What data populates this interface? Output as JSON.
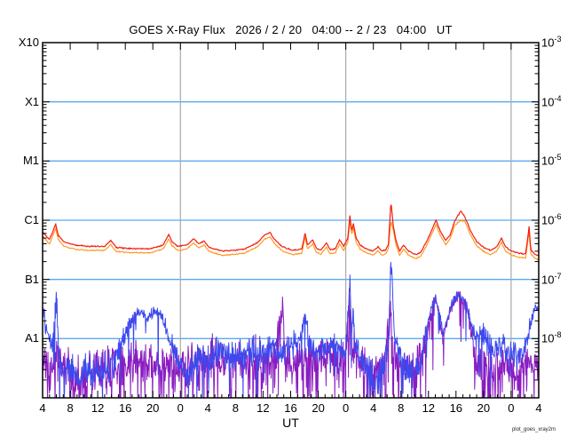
{
  "chart_data": {
    "type": "line",
    "title": "GOES X-Ray Flux   2026 / 2 / 20   04:00 -- 2 / 23   04:00   UT",
    "xlabel": "UT",
    "watermark": "plot_goes_xray2m",
    "x_range_hours": [
      0,
      72
    ],
    "ylim_log": [
      -9,
      -3
    ],
    "x_axis": {
      "major_tick_hours": 4,
      "minor_tick_hours": 1,
      "tick_labels": [
        "4",
        "8",
        "12",
        "16",
        "20",
        "0",
        "4",
        "8",
        "12",
        "16",
        "20",
        "0",
        "4",
        "8",
        "12",
        "16",
        "20",
        "0",
        "4"
      ]
    },
    "y_axis_left_labels": [
      {
        "label": "X10",
        "log": -3
      },
      {
        "label": "X1",
        "log": -4
      },
      {
        "label": "M1",
        "log": -5
      },
      {
        "label": "C1",
        "log": -6
      },
      {
        "label": "B1",
        "log": -7
      },
      {
        "label": "A1",
        "log": -8
      }
    ],
    "y_axis_right_labels": [
      {
        "base": "10",
        "exp": "-3",
        "log": -3
      },
      {
        "base": "10",
        "exp": "-4",
        "log": -4
      },
      {
        "base": "10",
        "exp": "-5",
        "log": -5
      },
      {
        "base": "10",
        "exp": "-6",
        "log": -6
      },
      {
        "base": "10",
        "exp": "-7",
        "log": -7
      },
      {
        "base": "10",
        "exp": "-8",
        "log": -8
      }
    ],
    "grid": {
      "h_lines_log": [
        -4,
        -5,
        -6,
        -7,
        -8
      ],
      "v_lines_hours": [
        20,
        44,
        68
      ],
      "h_line_color": "#58aaf2",
      "v_line_color": "#a9a9a9"
    },
    "series": [
      {
        "name": "xray-short-secondary",
        "color": "#8a1cc0",
        "width": 1,
        "step": 0.055,
        "seed": 911,
        "dip_prob": 0.12,
        "dip_depth": 1.2,
        "amp_keys": [
          [
            0,
            0.45
          ],
          [
            5,
            0.5
          ],
          [
            11,
            0.45
          ],
          [
            14,
            0.38
          ],
          [
            18,
            0.42
          ],
          [
            25,
            0.45
          ],
          [
            35,
            0.42
          ],
          [
            44,
            0.4
          ],
          [
            46,
            0.45
          ],
          [
            50,
            0.45
          ],
          [
            54,
            0.45
          ],
          [
            56.3,
            0.18
          ],
          [
            57.2,
            0.12
          ],
          [
            61,
            0.12
          ],
          [
            62.5,
            0.3
          ],
          [
            64,
            0.5
          ],
          [
            68,
            0.5
          ],
          [
            71,
            0.45
          ],
          [
            72,
            0.4
          ]
        ],
        "keypoints": [
          [
            0,
            -8.4
          ],
          [
            0.9,
            -8.6
          ],
          [
            1.55,
            -8.3
          ],
          [
            2.6,
            -8.5
          ],
          [
            3.5,
            -8.4
          ],
          [
            4.4,
            -8.8
          ],
          [
            5.4,
            -8.6
          ],
          [
            6.4,
            -8.7
          ],
          [
            7.5,
            -8.5
          ],
          [
            8.6,
            -8.55
          ],
          [
            9.8,
            -8.45
          ],
          [
            10.8,
            -8.5
          ],
          [
            11.8,
            -8.45
          ],
          [
            13.1,
            -8.4
          ],
          [
            14.2,
            -8.35
          ],
          [
            15.2,
            -8.45
          ],
          [
            16.2,
            -8.4
          ],
          [
            17.3,
            -8.5
          ],
          [
            18.3,
            -8.45
          ],
          [
            19.6,
            -8.5
          ],
          [
            21.1,
            -8.45
          ],
          [
            22.7,
            -8.35
          ],
          [
            24.5,
            -8.3
          ],
          [
            26,
            -8.4
          ],
          [
            27.6,
            -8.3
          ],
          [
            29.2,
            -8.35
          ],
          [
            30.9,
            -8.3
          ],
          [
            32.5,
            -8.4
          ],
          [
            33.7,
            -8.35
          ],
          [
            34.8,
            -7.5
          ],
          [
            35.3,
            -8.3
          ],
          [
            36.8,
            -8.35
          ],
          [
            38.4,
            -8.3
          ],
          [
            39.9,
            -8.35
          ],
          [
            41.5,
            -8.3
          ],
          [
            43,
            -8.4
          ],
          [
            44.05,
            -8.3
          ],
          [
            44.6,
            -7.3
          ],
          [
            44.95,
            -8.2
          ],
          [
            46.1,
            -8.4
          ],
          [
            47.4,
            -8.45
          ],
          [
            48.7,
            -8.5
          ],
          [
            49.7,
            -8.4
          ],
          [
            50.5,
            -7.6
          ],
          [
            50.9,
            -8.3
          ],
          [
            52,
            -8.45
          ],
          [
            53.3,
            -8.5
          ],
          [
            54.6,
            -8.45
          ],
          [
            55.6,
            -8.0
          ],
          [
            56.4,
            -7.55
          ],
          [
            56.9,
            -7.32
          ],
          [
            57.4,
            -7.5
          ],
          [
            58.1,
            -8.0
          ],
          [
            58.6,
            -7.8
          ],
          [
            59.2,
            -7.5
          ],
          [
            60,
            -7.32
          ],
          [
            60.5,
            -7.28
          ],
          [
            61.3,
            -7.4
          ],
          [
            62.1,
            -7.8
          ],
          [
            62.9,
            -8.3
          ],
          [
            64.1,
            -8.5
          ],
          [
            65.4,
            -8.55
          ],
          [
            66.7,
            -8.5
          ],
          [
            68,
            -8.55
          ],
          [
            69.3,
            -8.5
          ],
          [
            70.6,
            -8.45
          ],
          [
            71.3,
            -8.4
          ],
          [
            72,
            -8.35
          ]
        ]
      },
      {
        "name": "xray-short-primary",
        "color": "#3d49ed",
        "width": 1,
        "step": 0.055,
        "seed": 4242,
        "dip_prob": 0.05,
        "dip_depth": 1.1,
        "amp_keys": [
          [
            0,
            0.22
          ],
          [
            1.5,
            0.28
          ],
          [
            3,
            0.35
          ],
          [
            6,
            0.35
          ],
          [
            11,
            0.32
          ],
          [
            12.8,
            0.15
          ],
          [
            17,
            0.13
          ],
          [
            18.5,
            0.22
          ],
          [
            21,
            0.35
          ],
          [
            24,
            0.35
          ],
          [
            30,
            0.3
          ],
          [
            38,
            0.28
          ],
          [
            44.3,
            0.22
          ],
          [
            44.9,
            0.15
          ],
          [
            46,
            0.3
          ],
          [
            49,
            0.4
          ],
          [
            50.8,
            0.2
          ],
          [
            52,
            0.3
          ],
          [
            55.5,
            0.2
          ],
          [
            56.5,
            0.1
          ],
          [
            61.5,
            0.1
          ],
          [
            62.5,
            0.2
          ],
          [
            64,
            0.3
          ],
          [
            68,
            0.3
          ],
          [
            70.5,
            0.2
          ],
          [
            71.3,
            0.1
          ],
          [
            72,
            0.1
          ]
        ],
        "keypoints": [
          [
            0,
            -7.5
          ],
          [
            0.5,
            -7.8
          ],
          [
            1.3,
            -8.2
          ],
          [
            1.9,
            -7.5
          ],
          [
            2.06,
            -7.42
          ],
          [
            2.3,
            -8.1
          ],
          [
            3.1,
            -8.6
          ],
          [
            4.1,
            -8.5
          ],
          [
            5.2,
            -8.7
          ],
          [
            6.05,
            -8.4
          ],
          [
            7.3,
            -8.6
          ],
          [
            9,
            -8.5
          ],
          [
            10.3,
            -8.4
          ],
          [
            11.3,
            -8.1
          ],
          [
            12.6,
            -7.75
          ],
          [
            13.8,
            -7.58
          ],
          [
            14.4,
            -7.56
          ],
          [
            15.2,
            -7.68
          ],
          [
            16,
            -7.58
          ],
          [
            16.7,
            -7.56
          ],
          [
            17.6,
            -7.75
          ],
          [
            18.5,
            -8.05
          ],
          [
            19.6,
            -8.35
          ],
          [
            20.9,
            -8.6
          ],
          [
            22.4,
            -8.35
          ],
          [
            24.1,
            -8.4
          ],
          [
            25.8,
            -8.2
          ],
          [
            27.3,
            -8.3
          ],
          [
            28.9,
            -8.25
          ],
          [
            30.5,
            -8.2
          ],
          [
            32.2,
            -8.3
          ],
          [
            33.7,
            -8.15
          ],
          [
            35,
            -8.25
          ],
          [
            36.3,
            -8.1
          ],
          [
            37.6,
            -8.0
          ],
          [
            38.15,
            -7.45
          ],
          [
            38.6,
            -8.1
          ],
          [
            39.9,
            -8.25
          ],
          [
            41.5,
            -8.1
          ],
          [
            42.8,
            -8.15
          ],
          [
            44.05,
            -8.2
          ],
          [
            44.6,
            -6.98
          ],
          [
            44.85,
            -7.9
          ],
          [
            45.1,
            -7.5
          ],
          [
            45.35,
            -8.2
          ],
          [
            46.4,
            -8.35
          ],
          [
            47.65,
            -8.6
          ],
          [
            48.6,
            -8.75
          ],
          [
            49.5,
            -8.4
          ],
          [
            50.2,
            -8.1
          ],
          [
            50.58,
            -6.47
          ],
          [
            51,
            -7.9
          ],
          [
            51.8,
            -8.3
          ],
          [
            52.8,
            -8.5
          ],
          [
            53.8,
            -8.55
          ],
          [
            54.9,
            -8.4
          ],
          [
            55.6,
            -7.9
          ],
          [
            56.4,
            -7.5
          ],
          [
            56.9,
            -7.3
          ],
          [
            57.4,
            -7.45
          ],
          [
            58.1,
            -7.9
          ],
          [
            58.6,
            -7.75
          ],
          [
            59.2,
            -7.45
          ],
          [
            60,
            -7.3
          ],
          [
            60.5,
            -7.25
          ],
          [
            61.3,
            -7.35
          ],
          [
            62.1,
            -7.7
          ],
          [
            62.9,
            -8.0
          ],
          [
            63.9,
            -7.95
          ],
          [
            64.9,
            -8.1
          ],
          [
            66,
            -8.2
          ],
          [
            67,
            -8.1
          ],
          [
            68,
            -8.25
          ],
          [
            69,
            -8.3
          ],
          [
            70.1,
            -8.1
          ],
          [
            70.8,
            -7.75
          ],
          [
            71.3,
            -7.55
          ],
          [
            71.7,
            -7.45
          ],
          [
            72,
            -7.5
          ]
        ]
      },
      {
        "name": "xray-long-secondary",
        "color": "#ff9416",
        "width": 1.1,
        "step": 0.1,
        "seed": 77,
        "noise_amp": 0.012,
        "derive_from": "xray-long-primary",
        "log_offset": -0.07,
        "cap_log": -6.0
      },
      {
        "name": "xray-long-primary",
        "color": "#f41a0e",
        "width": 1.2,
        "step": 0.1,
        "seed": 31,
        "noise_amp": 0.012,
        "keypoints": [
          [
            0,
            -6.2
          ],
          [
            1,
            -6.33
          ],
          [
            1.9,
            -6.07
          ],
          [
            2.3,
            -6.26
          ],
          [
            3.1,
            -6.37
          ],
          [
            4.8,
            -6.42
          ],
          [
            6.7,
            -6.44
          ],
          [
            9,
            -6.44
          ],
          [
            9.9,
            -6.34
          ],
          [
            10.7,
            -6.46
          ],
          [
            13.1,
            -6.48
          ],
          [
            15.7,
            -6.48
          ],
          [
            17.5,
            -6.42
          ],
          [
            18.3,
            -6.24
          ],
          [
            18.8,
            -6.36
          ],
          [
            19.6,
            -6.44
          ],
          [
            20.9,
            -6.42
          ],
          [
            21.4,
            -6.37
          ],
          [
            21.9,
            -6.31
          ],
          [
            22.7,
            -6.4
          ],
          [
            23.4,
            -6.35
          ],
          [
            24.2,
            -6.46
          ],
          [
            26,
            -6.52
          ],
          [
            27.6,
            -6.51
          ],
          [
            29.2,
            -6.49
          ],
          [
            31.2,
            -6.38
          ],
          [
            32.2,
            -6.25
          ],
          [
            33,
            -6.21
          ],
          [
            33.7,
            -6.33
          ],
          [
            34.8,
            -6.45
          ],
          [
            36.3,
            -6.51
          ],
          [
            37.6,
            -6.49
          ],
          [
            38.1,
            -6.22
          ],
          [
            38.45,
            -6.42
          ],
          [
            39.2,
            -6.33
          ],
          [
            39.7,
            -6.47
          ],
          [
            40.4,
            -6.51
          ],
          [
            41.2,
            -6.38
          ],
          [
            41.7,
            -6.5
          ],
          [
            42.5,
            -6.48
          ],
          [
            43.1,
            -6.33
          ],
          [
            43.7,
            -6.44
          ],
          [
            44.3,
            -6.3
          ],
          [
            44.6,
            -5.92
          ],
          [
            44.85,
            -6.18
          ],
          [
            45.1,
            -6.05
          ],
          [
            45.5,
            -6.3
          ],
          [
            46.1,
            -6.42
          ],
          [
            46.9,
            -6.48
          ],
          [
            47.9,
            -6.52
          ],
          [
            48.7,
            -6.45
          ],
          [
            49.2,
            -6.52
          ],
          [
            49.8,
            -6.5
          ],
          [
            50.2,
            -6.4
          ],
          [
            50.55,
            -5.68
          ],
          [
            50.9,
            -6.1
          ],
          [
            51.3,
            -6.35
          ],
          [
            51.8,
            -6.52
          ],
          [
            52.4,
            -6.42
          ],
          [
            53.1,
            -6.52
          ],
          [
            54.1,
            -6.58
          ],
          [
            54.9,
            -6.54
          ],
          [
            55.9,
            -6.32
          ],
          [
            57.1,
            -6.0
          ],
          [
            57.7,
            -6.18
          ],
          [
            58.5,
            -6.34
          ],
          [
            59.1,
            -6.26
          ],
          [
            59.8,
            -6.02
          ],
          [
            60.7,
            -5.84
          ],
          [
            61.3,
            -5.95
          ],
          [
            62.1,
            -6.18
          ],
          [
            63,
            -6.36
          ],
          [
            64,
            -6.46
          ],
          [
            65,
            -6.51
          ],
          [
            65.9,
            -6.45
          ],
          [
            66.6,
            -6.3
          ],
          [
            67.1,
            -6.44
          ],
          [
            68,
            -6.52
          ],
          [
            69.2,
            -6.56
          ],
          [
            70.1,
            -6.57
          ],
          [
            70.6,
            -6.11
          ],
          [
            70.85,
            -6.5
          ],
          [
            71.5,
            -6.58
          ],
          [
            72,
            -6.6
          ]
        ]
      }
    ]
  }
}
